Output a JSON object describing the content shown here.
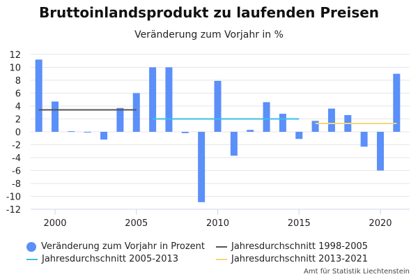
{
  "chart_data": {
    "type": "bar",
    "title": "Bruttoinlandsprodukt zu laufenden Preisen",
    "subtitle": "Veränderung zum Vorjahr in %",
    "xlabel": "",
    "ylabel": "",
    "xlim": [
      1998.5,
      2021.8
    ],
    "ylim": [
      -12,
      12
    ],
    "y_ticks": [
      12,
      10,
      8,
      6,
      4,
      2,
      0,
      -2,
      -4,
      -6,
      -8,
      -10,
      -12
    ],
    "x_ticks": [
      2000,
      2005,
      2010,
      2015,
      2020
    ],
    "grid": true,
    "series": [
      {
        "name": "Veränderung zum Vorjahr in Prozent",
        "type": "bar",
        "color": "#5b8ff9",
        "points": [
          {
            "x": 1999,
            "y": 11.2
          },
          {
            "x": 2000,
            "y": 4.7
          },
          {
            "x": 2001,
            "y": 0.1
          },
          {
            "x": 2002,
            "y": -0.1
          },
          {
            "x": 2003,
            "y": -1.2
          },
          {
            "x": 2004,
            "y": 3.7
          },
          {
            "x": 2005,
            "y": 6.0
          },
          {
            "x": 2006,
            "y": 10.0
          },
          {
            "x": 2007,
            "y": 10.0
          },
          {
            "x": 2008,
            "y": -0.2
          },
          {
            "x": 2009,
            "y": -10.9
          },
          {
            "x": 2010,
            "y": 7.9
          },
          {
            "x": 2011,
            "y": -3.7
          },
          {
            "x": 2012,
            "y": 0.3
          },
          {
            "x": 2013,
            "y": 4.6
          },
          {
            "x": 2014,
            "y": 2.8
          },
          {
            "x": 2015,
            "y": -1.1
          },
          {
            "x": 2016,
            "y": 1.7
          },
          {
            "x": 2017,
            "y": 3.6
          },
          {
            "x": 2018,
            "y": 2.6
          },
          {
            "x": 2019,
            "y": -2.3
          },
          {
            "x": 2020,
            "y": -6.0
          },
          {
            "x": 2021,
            "y": 9.0
          }
        ]
      },
      {
        "name": "Jahresdurchschnitt 1998-2005",
        "type": "line",
        "color": "#555555",
        "points": [
          {
            "x": 1999,
            "y": 3.4
          },
          {
            "x": 2005,
            "y": 3.4
          }
        ]
      },
      {
        "name": "Jahresdurchschnitt 2005-2013",
        "type": "line",
        "color": "#3dbde8",
        "points": [
          {
            "x": 2006,
            "y": 2.0
          },
          {
            "x": 2015,
            "y": 2.0
          }
        ]
      },
      {
        "name": "Jahresdurchschnitt 2013-2021",
        "type": "line",
        "color": "#f5d77a",
        "points": [
          {
            "x": 2016,
            "y": 1.3
          },
          {
            "x": 2021,
            "y": 1.3
          }
        ]
      }
    ],
    "legend_placement": "bottom"
  },
  "credits": "Amt für Statistik Liechtenstein"
}
